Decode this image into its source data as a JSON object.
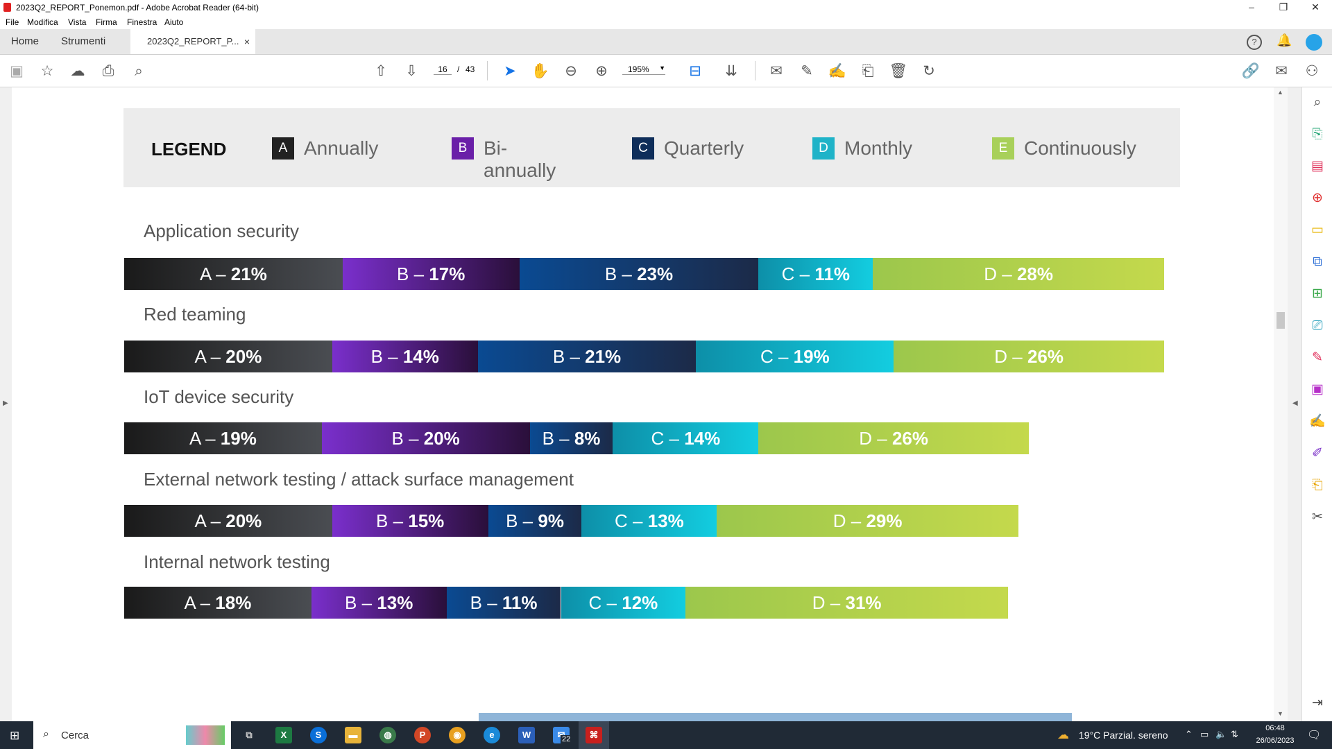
{
  "window": {
    "title": "2023Q2_REPORT_Ponemon.pdf - Adobe Acrobat Reader (64-bit)"
  },
  "menu": [
    "File",
    "Modifica",
    "Vista",
    "Firma",
    "Finestra",
    "Aiuto"
  ],
  "tabs": {
    "home": "Home",
    "tools": "Strumenti",
    "doc": "2023Q2_REPORT_P...",
    "close": "×"
  },
  "toolbar": {
    "page_current": "16",
    "page_sep": "/",
    "page_total": "43",
    "zoom": "195%"
  },
  "legend": {
    "title": "LEGEND",
    "items": [
      {
        "letter": "A",
        "label": "Annually",
        "color": "#2a2a2a"
      },
      {
        "letter": "B",
        "label": "Bi-annually",
        "color": "#6a1fa8"
      },
      {
        "letter": "C",
        "label": "Quarterly",
        "color": "#0f2e5a"
      },
      {
        "letter": "D",
        "label": "Monthly",
        "color": "#1fb3c8"
      },
      {
        "letter": "E",
        "label": "Continuously",
        "color": "#a8d05a"
      }
    ]
  },
  "chart_data": {
    "type": "bar",
    "orientation": "horizontal-stacked",
    "series_colors": [
      "#2a2a2a",
      "#6a1fa8",
      "#0a4a8a",
      "#1aaebe",
      "#b5d14c"
    ],
    "rows": [
      {
        "title": "Application security",
        "segments": [
          {
            "letter": "A",
            "value": 21,
            "text": "A – ",
            "pct": "21%"
          },
          {
            "letter": "B",
            "value": 17,
            "text": "B – ",
            "pct": "17%"
          },
          {
            "letter": "B",
            "value": 23,
            "text": "B – ",
            "pct": "23%"
          },
          {
            "letter": "C",
            "value": 11,
            "text": "C – ",
            "pct": "11%"
          },
          {
            "letter": "D",
            "value": 28,
            "text": "D – ",
            "pct": "28%"
          }
        ]
      },
      {
        "title": "Red teaming",
        "segments": [
          {
            "letter": "A",
            "value": 20,
            "text": "A – ",
            "pct": "20%"
          },
          {
            "letter": "B",
            "value": 14,
            "text": "B – ",
            "pct": "14%"
          },
          {
            "letter": "B",
            "value": 21,
            "text": "B – ",
            "pct": "21%"
          },
          {
            "letter": "C",
            "value": 19,
            "text": "C – ",
            "pct": "19%"
          },
          {
            "letter": "D",
            "value": 26,
            "text": "D – ",
            "pct": "26%"
          }
        ]
      },
      {
        "title": "IoT device security",
        "segments": [
          {
            "letter": "A",
            "value": 19,
            "text": "A – ",
            "pct": "19%"
          },
          {
            "letter": "B",
            "value": 20,
            "text": "B – ",
            "pct": "20%"
          },
          {
            "letter": "B",
            "value": 8,
            "text": "B – ",
            "pct": "8%"
          },
          {
            "letter": "C",
            "value": 14,
            "text": "C – ",
            "pct": "14%"
          },
          {
            "letter": "D",
            "value": 26,
            "text": "D – ",
            "pct": "26%"
          }
        ]
      },
      {
        "title": "External network testing / attack surface management",
        "segments": [
          {
            "letter": "A",
            "value": 20,
            "text": "A – ",
            "pct": "20%"
          },
          {
            "letter": "B",
            "value": 15,
            "text": "B – ",
            "pct": "15%"
          },
          {
            "letter": "B",
            "value": 9,
            "text": "B – ",
            "pct": "9%"
          },
          {
            "letter": "C",
            "value": 13,
            "text": "C – ",
            "pct": "13%"
          },
          {
            "letter": "D",
            "value": 29,
            "text": "D – ",
            "pct": "29%"
          }
        ]
      },
      {
        "title": "Internal network testing",
        "segments": [
          {
            "letter": "A",
            "value": 18,
            "text": "A – ",
            "pct": "18%"
          },
          {
            "letter": "B",
            "value": 13,
            "text": "B – ",
            "pct": "13%"
          },
          {
            "letter": "B",
            "value": 11,
            "text": "B – ",
            "pct": "11%"
          },
          {
            "letter": "C",
            "value": 12,
            "text": "C – ",
            "pct": "12%"
          },
          {
            "letter": "D",
            "value": 31,
            "text": "D – ",
            "pct": "31%"
          }
        ]
      }
    ]
  },
  "taskbar": {
    "search": "Cerca",
    "weather": "19°C  Parzial. sereno",
    "time": "06:48",
    "date": "26/06/2023",
    "mail_badge": "22"
  }
}
